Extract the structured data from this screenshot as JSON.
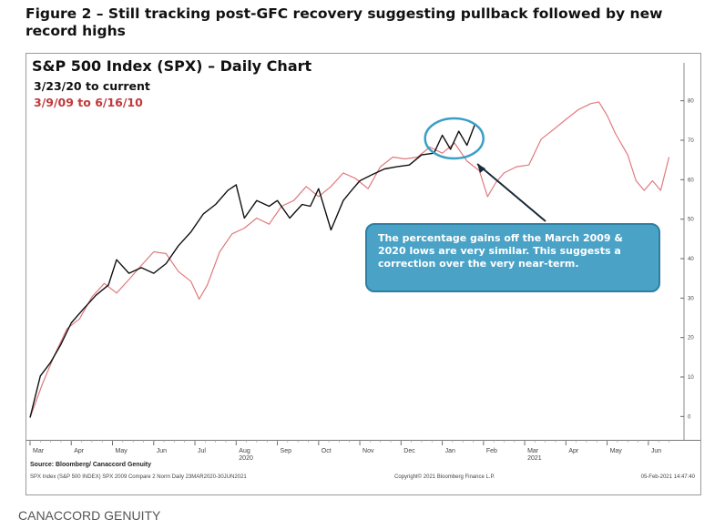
{
  "figure_title": "Figure 2 – Still tracking post-GFC recovery suggesting pullback followed by new record highs",
  "brand": "CANACCORD GENUITY",
  "chart_data": {
    "type": "line",
    "title": "S&P 500 Index (SPX) – Daily Chart",
    "subtitle_black": "3/23/20 to current",
    "subtitle_red": "3/9/09 to 6/16/10",
    "y_ticks": [
      "0",
      "10",
      "20",
      "30",
      "40",
      "50",
      "60",
      "70",
      "80"
    ],
    "ylim": [
      -5,
      85
    ],
    "x_tick_labels": [
      "Mar",
      "Apr",
      "May",
      "Jun",
      "Jul",
      "Aug",
      "Sep",
      "Oct",
      "Nov",
      "Dec",
      "Jan",
      "Feb",
      "Mar",
      "Apr",
      "May",
      "Jun"
    ],
    "year_labels": [
      {
        "label": "2020",
        "month_index": 5
      },
      {
        "label": "2021",
        "month_index": 12
      }
    ],
    "xlim": [
      0,
      15.6
    ],
    "series": [
      {
        "name": "3/23/20 to current",
        "color": "#111111",
        "x": [
          0,
          0.25,
          0.5,
          0.75,
          1,
          1.3,
          1.6,
          1.9,
          2.1,
          2.4,
          2.7,
          3,
          3.3,
          3.6,
          3.9,
          4.2,
          4.5,
          4.8,
          5,
          5.2,
          5.5,
          5.8,
          6,
          6.3,
          6.6,
          6.8,
          7,
          7.3,
          7.6,
          7.8,
          8,
          8.3,
          8.6,
          8.9,
          9.2,
          9.5,
          9.8,
          10,
          10.2,
          10.4,
          10.6,
          10.8
        ],
        "values": [
          0,
          10,
          14,
          18,
          24,
          27,
          31,
          33,
          40,
          36,
          38,
          36,
          39,
          43,
          47,
          51,
          54,
          57,
          59,
          50,
          55,
          53,
          55,
          50,
          54,
          53,
          58,
          47,
          55,
          57,
          60,
          61,
          63,
          63,
          64,
          66,
          67,
          71,
          68,
          72,
          69,
          74
        ]
      },
      {
        "name": "3/9/09 to 6/16/10",
        "color": "#e0797e",
        "x": [
          0,
          0.3,
          0.6,
          0.9,
          1.2,
          1.5,
          1.8,
          2.1,
          2.4,
          2.7,
          3,
          3.3,
          3.6,
          3.9,
          4.1,
          4.3,
          4.6,
          4.9,
          5.2,
          5.5,
          5.8,
          6.1,
          6.4,
          6.7,
          7,
          7.3,
          7.6,
          7.9,
          8.2,
          8.5,
          8.8,
          9.1,
          9.4,
          9.7,
          10,
          10.3,
          10.6,
          10.9,
          11.1,
          11.3,
          11.5,
          11.8,
          12.1,
          12.4,
          12.7,
          13,
          13.3,
          13.6,
          13.8,
          14,
          14.2,
          14.5,
          14.7,
          14.9,
          15.1,
          15.3,
          15.5
        ],
        "values": [
          0,
          8,
          16,
          22,
          25,
          30,
          34,
          31,
          35,
          38,
          42,
          41,
          37,
          34,
          30,
          33,
          42,
          46,
          48,
          50,
          49,
          53,
          55,
          58,
          56,
          58,
          62,
          60,
          58,
          63,
          66,
          65,
          66,
          68,
          67,
          69,
          65,
          62,
          56,
          59,
          62,
          63,
          64,
          70,
          73,
          75,
          78,
          79,
          80,
          76,
          72,
          66,
          60,
          57,
          60,
          57,
          66
        ]
      }
    ],
    "annotation": "The percentage gains off the March 2009 & 2020 lows are very similar.  This suggests a correction over the very near-term.",
    "source": "Source: Bloomberg/ Canaccord Genuity",
    "footer_left": "SPX Index (S&P 500 INDEX) SPX 2009 Compare 2 Norm  Daily 23MAR2020-30JUN2021",
    "footer_mid": "Copyright© 2021 Bloomberg Finance L.P.",
    "footer_right": "05-Feb-2021 14:47:40"
  }
}
